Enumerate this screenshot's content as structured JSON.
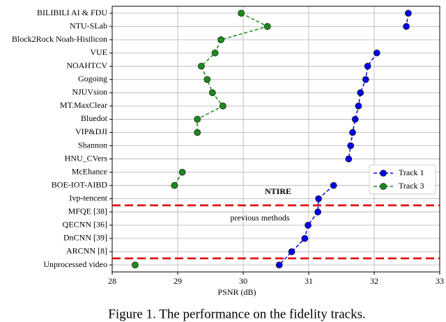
{
  "chart_data": {
    "type": "line",
    "orientation": "horizontal",
    "caption": "Figure 1. The performance on the fidelity tracks.",
    "xlabel": "PSNR (dB)",
    "categories": [
      "BILIBILI AI & FDU",
      "NTU-SLab",
      "Block2Rock Noah-Hisilicon",
      "VUE",
      "NOAHTCV",
      "Gogoing",
      "NJUVsion",
      "MT.MaxClear",
      "Bluedot",
      "VIP&DJI",
      "Shannon",
      "HNU_CVers",
      "McEhance",
      "BOE-IOT-AIBD",
      "Ivp-tencent",
      "MFQE [38]",
      "QECNN [36]",
      "DnCNN [39]",
      "ARCNN [8]",
      "Unprocessed video"
    ],
    "series": [
      {
        "name": "Track 1",
        "color": "#0000ee",
        "values": [
          32.52,
          32.49,
          null,
          32.04,
          31.9,
          31.87,
          31.79,
          31.76,
          31.71,
          31.67,
          31.64,
          31.61,
          null,
          31.38,
          31.15,
          31.14,
          30.99,
          30.94,
          30.74,
          30.55
        ]
      },
      {
        "name": "Track 3",
        "color": "#1a8a1a",
        "values": [
          29.97,
          30.37,
          29.66,
          29.57,
          29.36,
          29.45,
          29.53,
          29.69,
          29.3,
          29.3,
          null,
          null,
          29.07,
          28.95,
          null,
          null,
          null,
          null,
          null,
          28.35
        ]
      }
    ],
    "annotations": [
      {
        "text": "NTIRE",
        "color": "#e00000"
      },
      {
        "text": "previous methods",
        "color": "#3a3ad8"
      }
    ],
    "xlim": [
      28,
      33
    ],
    "xticks": [
      28,
      29,
      30,
      31,
      32,
      33
    ],
    "grid": true,
    "legend": "center right"
  }
}
